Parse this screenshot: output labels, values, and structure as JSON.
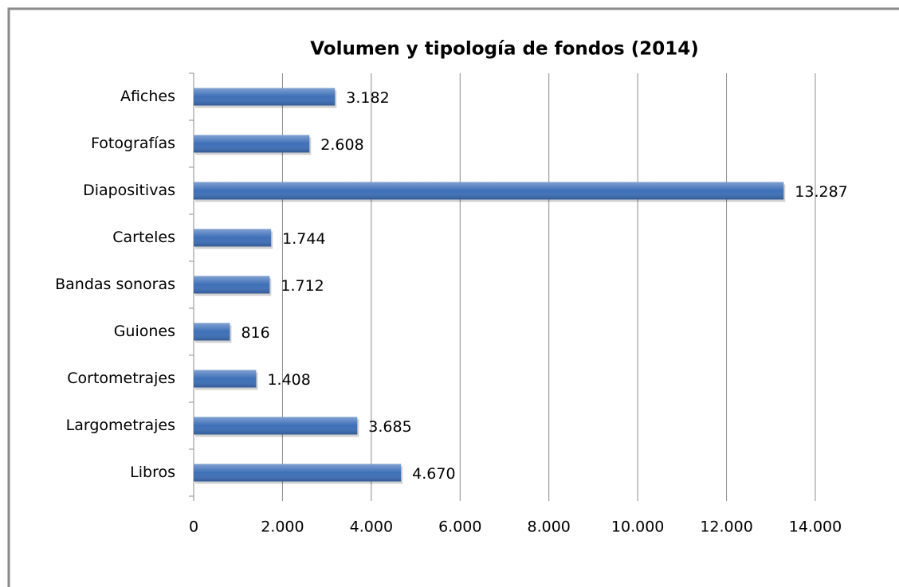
{
  "chart_data": {
    "type": "bar",
    "orientation": "horizontal",
    "title": "Volumen y tipología de fondos  (2014)",
    "categories": [
      "Afiches",
      "Fotografías",
      "Diapositivas",
      "Carteles",
      "Bandas sonoras",
      "Guiones",
      "Cortometrajes",
      "Largometrajes",
      "Libros"
    ],
    "values": [
      3182,
      2608,
      13287,
      1744,
      1712,
      816,
      1408,
      3685,
      4670
    ],
    "value_labels": [
      "3.182",
      "2.608",
      "13.287",
      "1.744",
      "1.712",
      "816",
      "1.408",
      "3.685",
      "4.670"
    ],
    "color": "#3d6fb8",
    "xlim": [
      0,
      14000
    ],
    "xticks": [
      0,
      {
        "value": 2000,
        "label": "2.000"
      },
      {
        "value": 4000,
        "label": "4.000"
      },
      {
        "value": 6000,
        "label": "6.000"
      },
      {
        "value": 8000,
        "label": "8.000"
      },
      {
        "value": 10000,
        "label": "10.000"
      },
      {
        "value": 12000,
        "label": "12.000"
      },
      {
        "value": 14000,
        "label": "14.000"
      }
    ],
    "grid": true
  }
}
